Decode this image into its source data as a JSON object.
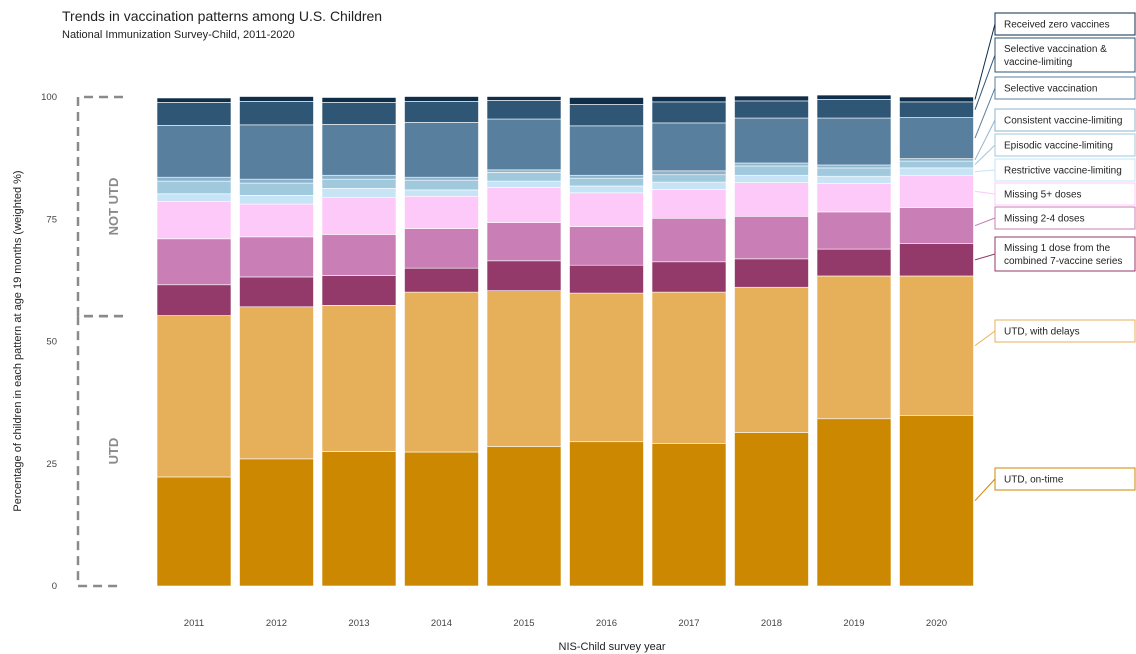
{
  "chart_data": {
    "type": "bar",
    "stacked": true,
    "title": "Trends in vaccination patterns among U.S. Children",
    "subtitle": "National Immunization Survey-Child, 2011-2020",
    "xlabel": "NIS-Child survey year",
    "ylabel": "Percentage of children in each pattern at age 19 months (weighted %)",
    "ylim": [
      0,
      100
    ],
    "yticks": [
      0,
      25,
      50,
      75,
      100
    ],
    "categories": [
      "2011",
      "2012",
      "2013",
      "2014",
      "2015",
      "2016",
      "2017",
      "2018",
      "2019",
      "2020"
    ],
    "groups": [
      {
        "label": "UTD",
        "from": 0,
        "to": 55.2
      },
      {
        "label": "NOT UTD",
        "from": 55.2,
        "to": 100
      }
    ],
    "series": [
      {
        "name": "UTD, on-time",
        "color": "#CC8800",
        "values": [
          22.3,
          26.0,
          27.5,
          27.4,
          28.5,
          29.5,
          29.1,
          31.4,
          34.2,
          34.9
        ]
      },
      {
        "name": "UTD, with delays",
        "color": "#E6B05A",
        "values": [
          33.0,
          31.1,
          29.9,
          32.7,
          31.9,
          30.4,
          31.0,
          29.7,
          29.2,
          28.5
        ]
      },
      {
        "name": "Missing 1 dose from the combined 7-vaccine series",
        "color": "#933A6A",
        "values": [
          6.3,
          6.1,
          6.1,
          4.9,
          6.1,
          5.7,
          6.2,
          5.8,
          5.5,
          6.6
        ]
      },
      {
        "name": "Missing 2-4 doses",
        "color": "#C97FB5",
        "values": [
          9.4,
          8.2,
          8.4,
          8.1,
          7.8,
          7.9,
          8.9,
          8.7,
          7.6,
          7.4
        ]
      },
      {
        "name": "Missing 5+ doses",
        "color": "#FCC9F8",
        "values": [
          7.6,
          6.7,
          7.6,
          6.6,
          7.2,
          6.9,
          5.9,
          6.9,
          5.8,
          6.6
        ]
      },
      {
        "name": "Restrictive vaccine-limiting",
        "color": "#C6E4F6",
        "values": [
          1.6,
          1.8,
          1.8,
          1.3,
          1.3,
          1.4,
          1.5,
          1.5,
          1.5,
          1.5
        ]
      },
      {
        "name": "Episodic vaccine-limiting",
        "color": "#A0C9DE",
        "values": [
          2.6,
          2.5,
          1.9,
          2.0,
          1.8,
          1.6,
          1.5,
          1.9,
          1.7,
          1.4
        ]
      },
      {
        "name": "Consistent vaccine-limiting",
        "color": "#8EB4CB",
        "values": [
          0.8,
          0.8,
          0.8,
          0.6,
          0.5,
          0.6,
          0.8,
          0.6,
          0.6,
          0.5
        ]
      },
      {
        "name": "Selective vaccination",
        "color": "#587F9E",
        "values": [
          10.6,
          11.1,
          10.4,
          11.2,
          10.4,
          10.1,
          9.8,
          9.2,
          9.6,
          8.4
        ]
      },
      {
        "name": "Selective vaccination & vaccine-limiting",
        "color": "#2F5675",
        "values": [
          4.7,
          4.8,
          4.5,
          4.3,
          3.8,
          4.4,
          4.3,
          3.5,
          3.8,
          3.2
        ]
      },
      {
        "name": "Received zero vaccines",
        "color": "#0E2E49",
        "values": [
          0.9,
          1.0,
          1.0,
          1.0,
          0.8,
          1.4,
          1.1,
          1.0,
          0.9,
          1.0
        ]
      }
    ],
    "legend": {
      "placement": "right",
      "entries": [
        {
          "text": [
            "Received zero vaccines"
          ],
          "color": "#0E2E49"
        },
        {
          "text": [
            "Selective vaccination &",
            "vaccine-limiting"
          ],
          "color": "#2F5675"
        },
        {
          "text": [
            "Selective vaccination"
          ],
          "color": "#587F9E"
        },
        {
          "text": [
            "Consistent vaccine-limiting"
          ],
          "color": "#8EB4CB"
        },
        {
          "text": [
            "Episodic vaccine-limiting"
          ],
          "color": "#A0C9DE"
        },
        {
          "text": [
            "Restrictive vaccine-limiting"
          ],
          "color": "#C6E4F6"
        },
        {
          "text": [
            "Missing 5+ doses"
          ],
          "color": "#FCC9F8"
        },
        {
          "text": [
            "Missing 2-4 doses"
          ],
          "color": "#C97FB5"
        },
        {
          "text": [
            "Missing 1 dose from the",
            "combined 7-vaccine series"
          ],
          "color": "#933A6A"
        },
        {
          "text": [
            "UTD, with delays"
          ],
          "color": "#E6B05A"
        },
        {
          "text": [
            "UTD, on-time"
          ],
          "color": "#CC8800"
        }
      ]
    },
    "grid": false
  }
}
